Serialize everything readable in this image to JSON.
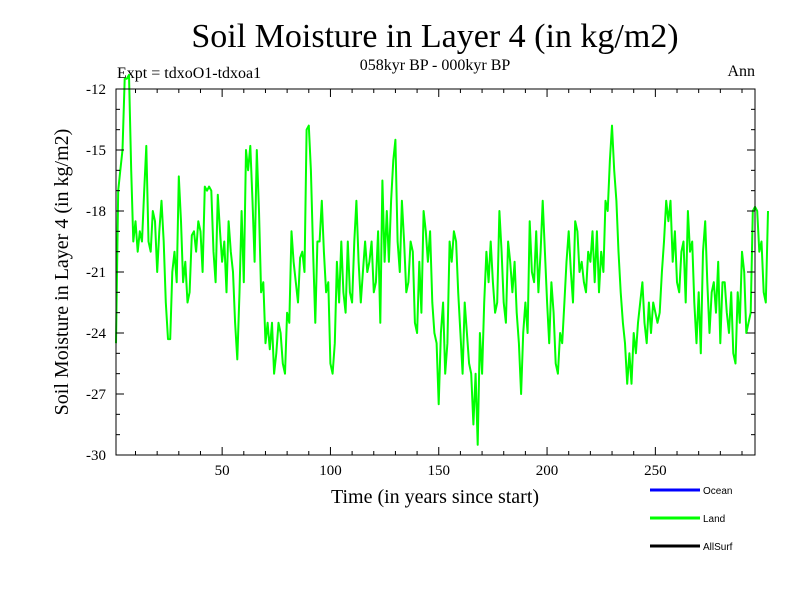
{
  "chart_data": {
    "type": "line",
    "title": "Soil Moisture in Layer 4 (in kg/m2)",
    "subtitle": "058kyr BP - 000kyr BP",
    "experiment_label": "Expt = tdxoO1-tdxoa1",
    "season_label": "Ann",
    "xlabel": "Time (in years since start)",
    "ylabel": "Soil Moisture in Layer 4 (in kg/m2)",
    "xlim": [
      1,
      296
    ],
    "ylim": [
      -30,
      -12
    ],
    "x_ticks": [
      50,
      100,
      150,
      200,
      250
    ],
    "y_ticks": [
      -12,
      -15,
      -18,
      -21,
      -24,
      -27,
      -30
    ],
    "legend": [
      {
        "name": "Ocean",
        "color": "#0000ff"
      },
      {
        "name": "Land",
        "color": "#00ff00"
      },
      {
        "name": "AllSurf",
        "color": "#000000"
      }
    ],
    "series": [
      {
        "name": "Land",
        "color": "#00ff00",
        "x_start": 1,
        "x_step": 1,
        "values": [
          -24.5,
          -17,
          -16,
          -15,
          -11.5,
          -11.5,
          -11.3,
          -16,
          -19.5,
          -18.5,
          -20,
          -19,
          -19.5,
          -17,
          -14.8,
          -19.5,
          -20,
          -18,
          -18.5,
          -21,
          -19,
          -17.5,
          -19.5,
          -22.5,
          -24.3,
          -24.3,
          -21,
          -20,
          -21.5,
          -16.3,
          -18.5,
          -21.5,
          -20.5,
          -22.5,
          -22,
          -19.2,
          -19,
          -20,
          -18.5,
          -19,
          -21,
          -16.8,
          -17,
          -16.8,
          -17,
          -20,
          -21.5,
          -17.2,
          -19,
          -20.5,
          -19.5,
          -22,
          -18.5,
          -20,
          -21,
          -23.5,
          -25.3,
          -22,
          -18,
          -21.5,
          -15,
          -16,
          -14.8,
          -17.5,
          -20.5,
          -15,
          -18,
          -22,
          -21.5,
          -24.5,
          -23.5,
          -24.8,
          -23.5,
          -26,
          -25,
          -23.5,
          -24,
          -25.5,
          -26,
          -23,
          -23.5,
          -19,
          -20.5,
          -21.5,
          -22.5,
          -20.3,
          -20,
          -21,
          -14,
          -13.8,
          -16,
          -20,
          -23.5,
          -19.5,
          -19.5,
          -17.5,
          -20,
          -22,
          -21.5,
          -25.5,
          -26,
          -24.5,
          -20.5,
          -22.5,
          -19.5,
          -22,
          -23,
          -19.5,
          -22,
          -22.5,
          -19.5,
          -17.5,
          -20.5,
          -22.5,
          -21,
          -19.5,
          -21,
          -20.5,
          -19.5,
          -22,
          -21.5,
          -19,
          -23.5,
          -16.5,
          -20.5,
          -18,
          -20.5,
          -17.5,
          -15.5,
          -14.5,
          -19.5,
          -21,
          -17.5,
          -19.5,
          -22,
          -21.5,
          -19.5,
          -20,
          -23.5,
          -24,
          -20.5,
          -23,
          -18,
          -19,
          -20.5,
          -19,
          -22.5,
          -24,
          -24.5,
          -27.5,
          -24,
          -22.5,
          -26,
          -24.5,
          -19.5,
          -20.5,
          -19,
          -19.5,
          -22,
          -24,
          -26,
          -22.5,
          -24,
          -25.5,
          -26,
          -28.5,
          -26,
          -29.5,
          -24,
          -26,
          -22.5,
          -20,
          -21.5,
          -19.5,
          -21.5,
          -23,
          -22.5,
          -18,
          -20,
          -22.5,
          -23.5,
          -19.5,
          -20.5,
          -22,
          -20.5,
          -23,
          -24.5,
          -27,
          -24,
          -22.5,
          -24,
          -18.5,
          -21,
          -21.5,
          -19,
          -22,
          -20,
          -17.5,
          -20,
          -22.5,
          -24.5,
          -21.5,
          -23,
          -25.5,
          -26,
          -24,
          -24.5,
          -22.5,
          -20.5,
          -19,
          -21,
          -22.5,
          -18.5,
          -19,
          -21,
          -20.5,
          -21.5,
          -22,
          -20,
          -20.5,
          -19,
          -21.5,
          -19,
          -22,
          -20,
          -21,
          -17.5,
          -18,
          -15.5,
          -13.8,
          -16,
          -17.5,
          -20,
          -22,
          -23.5,
          -24.5,
          -26.5,
          -25,
          -26.5,
          -24,
          -25,
          -23.5,
          -22.5,
          -21.5,
          -23.5,
          -24.5,
          -22.5,
          -24,
          -22.5,
          -23,
          -23.5,
          -23,
          -21,
          -19.5,
          -17.5,
          -18.5,
          -17.5,
          -20.5,
          -19,
          -21.5,
          -22,
          -20,
          -19.5,
          -22.5,
          -18,
          -20,
          -19.5,
          -22.5,
          -24.5,
          -22,
          -25,
          -20,
          -18.5,
          -21.5,
          -24,
          -22,
          -21.5,
          -23,
          -20.5,
          -24.5,
          -21.5,
          -21.5,
          -23,
          -24,
          -22,
          -25,
          -25.5,
          -22,
          -23.5,
          -20,
          -21,
          -24,
          -23.5,
          -23,
          -18,
          -17.8,
          -18,
          -20,
          -19.5,
          -22,
          -22.5,
          -18
        ]
      }
    ]
  }
}
